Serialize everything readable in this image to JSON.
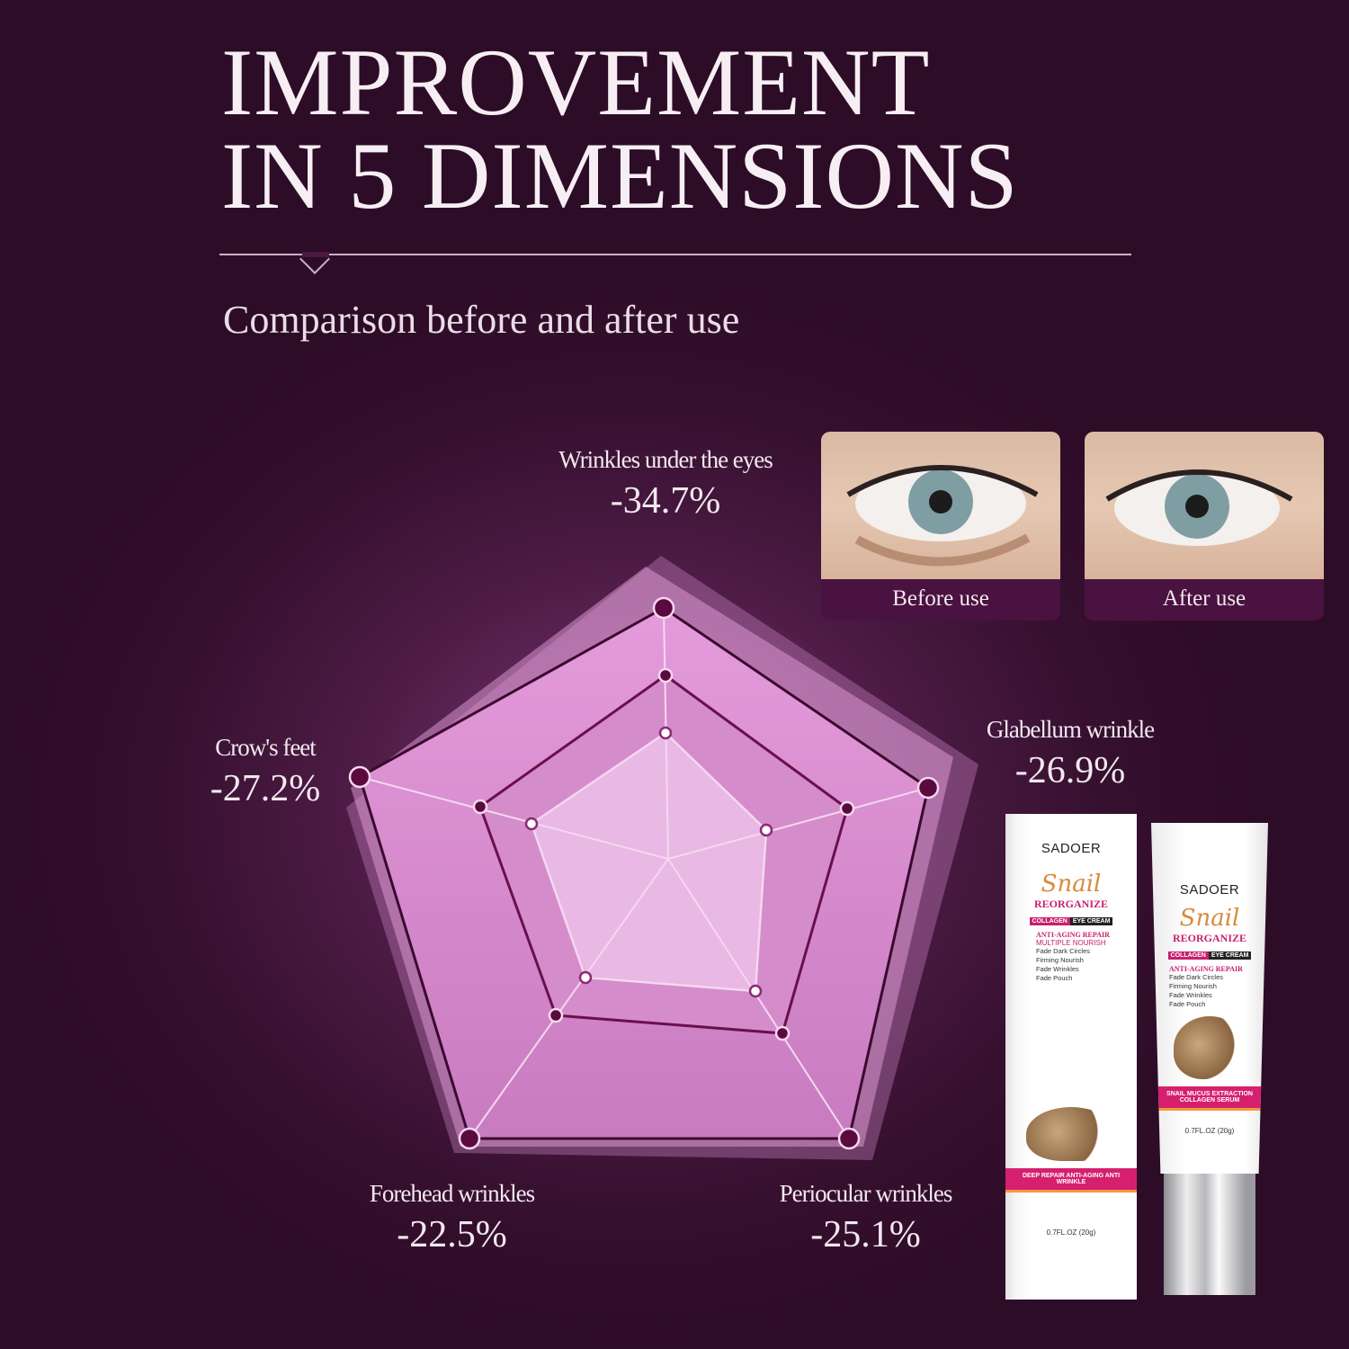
{
  "header": {
    "title_line1": "IMPROVEMENT",
    "title_line2": "IN 5 DIMENSIONS",
    "subtitle": "Comparison before and after use"
  },
  "radar": {
    "dimensions": [
      {
        "name": "Wrinkles under the eyes",
        "value": "-34.7%"
      },
      {
        "name": "Glabellum wrinkle",
        "value": "-26.9%"
      },
      {
        "name": "Periocular wrinkles",
        "value": "-25.1%"
      },
      {
        "name": "Forehead wrinkles",
        "value": "-22.5%"
      },
      {
        "name": "Crow's feet",
        "value": "-27.2%"
      }
    ],
    "colors": {
      "fill": "#e7a6df",
      "node": "#5a0a3e",
      "line": "#f4d8ef"
    }
  },
  "photos": {
    "before_label": "Before use",
    "after_label": "After use"
  },
  "product": {
    "brand": "SADOER",
    "name": "Snail",
    "line": "REORGANIZE",
    "tag1": "COLLAGEN",
    "tag2": "EYE CREAM",
    "claim1": "ANTI-AGING REPAIR",
    "claim2": "MULTIPLE NOURISH",
    "features": [
      "Fade Dark Circles",
      "Firming Nourish",
      "Fade Wrinkles",
      "Fade Pouch"
    ],
    "box_band": "DEEP REPAIR ANTI-AGING ANTI WRINKLE",
    "tube_band": "SNAIL MUCUS EXTRACTION COLLAGEN SERUM",
    "size": "0.7FL.OZ (20g)"
  }
}
